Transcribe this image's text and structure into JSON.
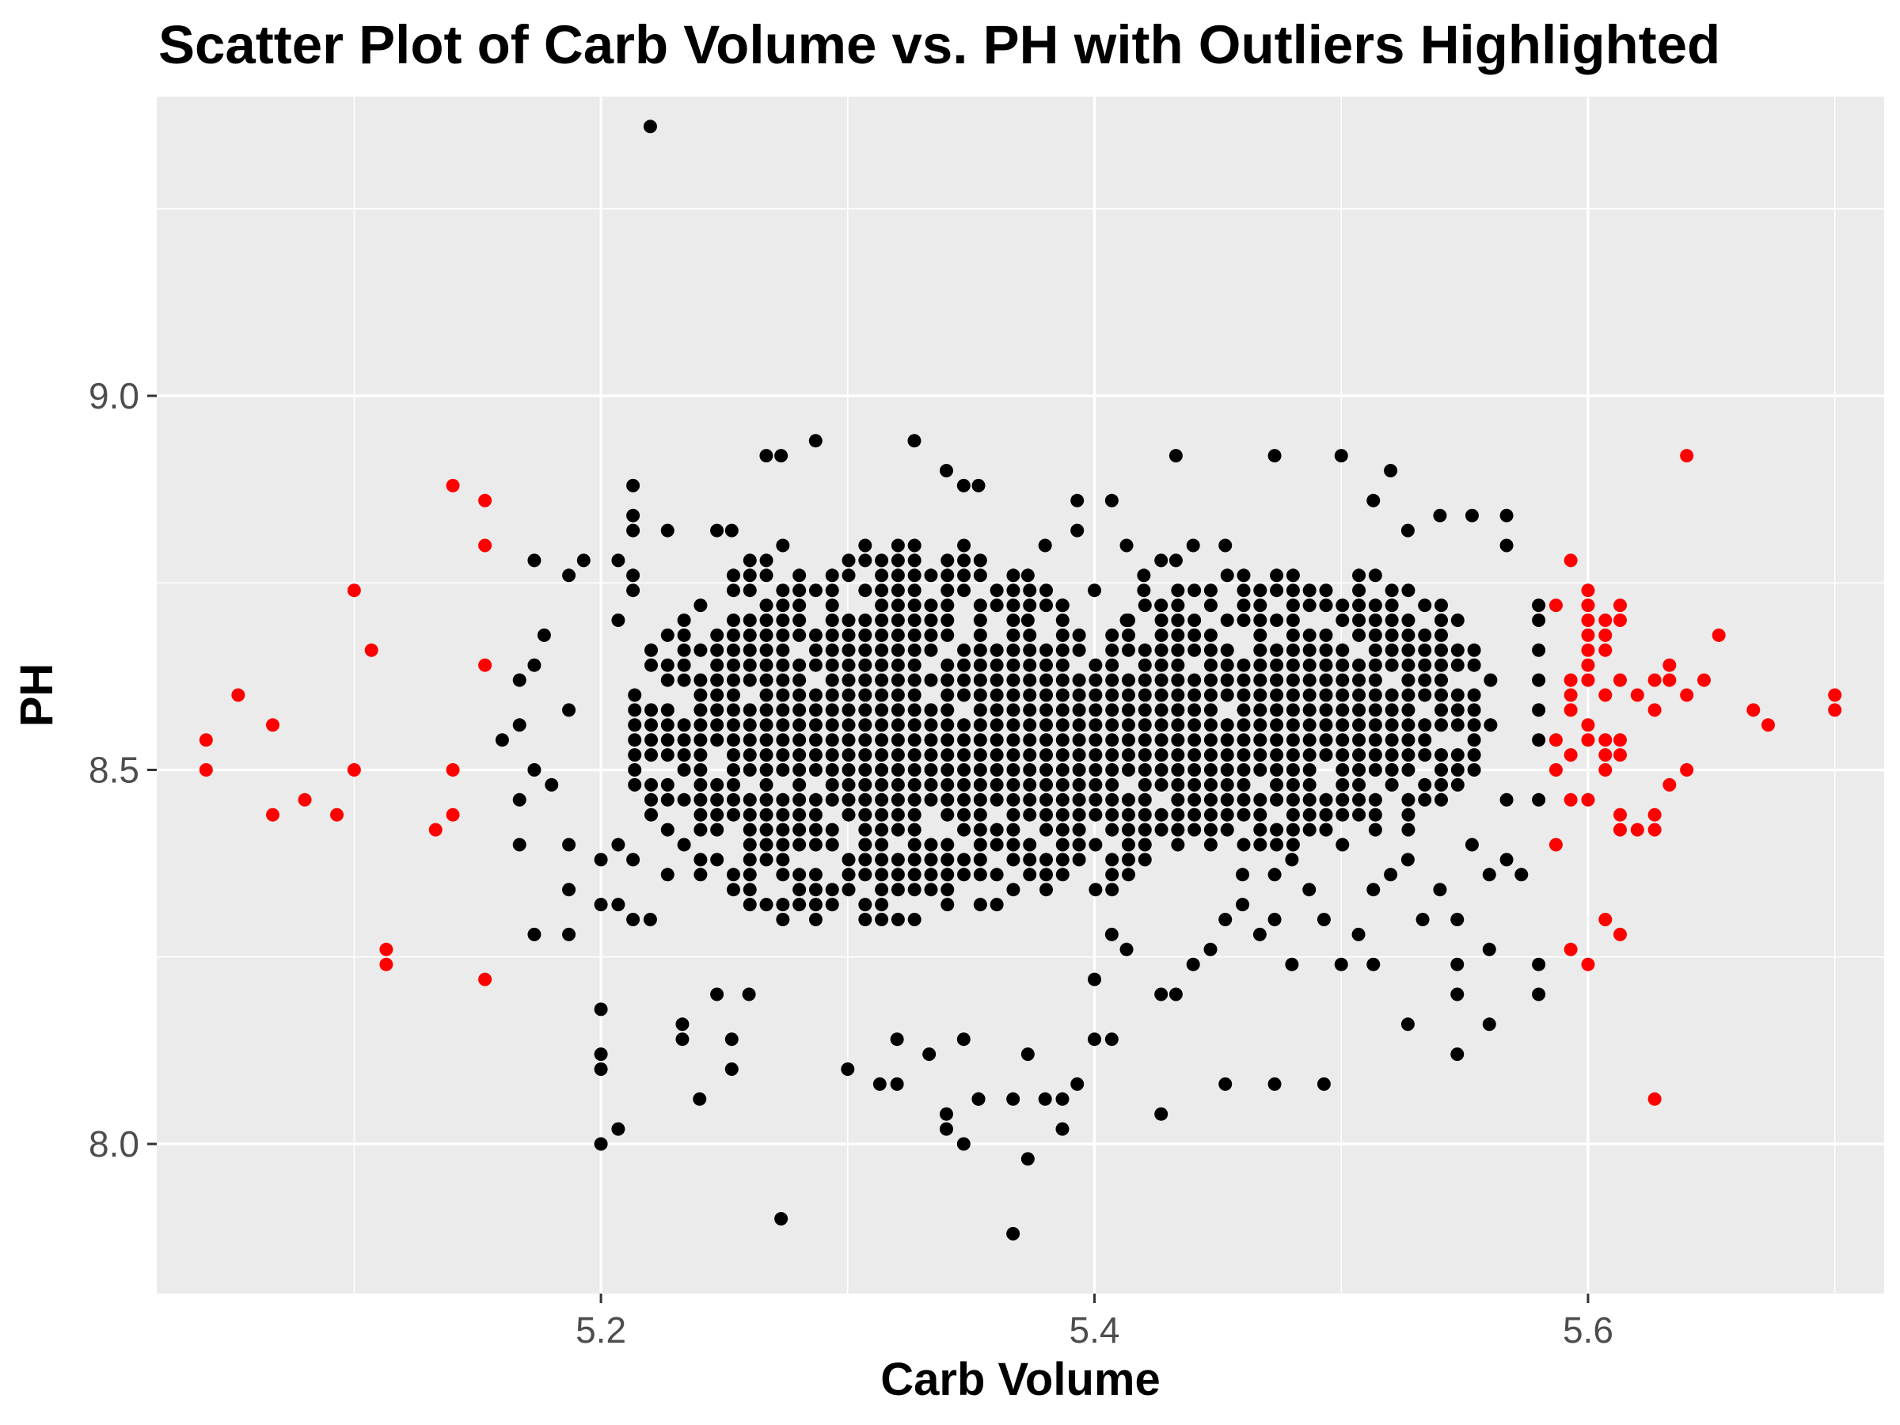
{
  "chart_data": {
    "type": "scatter",
    "title": "Scatter Plot of Carb Volume vs. PH with Outliers Highlighted",
    "xlabel": "Carb Volume",
    "ylabel": "PH",
    "xlim": [
      5.02,
      5.72
    ],
    "ylim": [
      7.8,
      9.4
    ],
    "x_ticks": [
      5.2,
      5.4,
      5.6
    ],
    "x_tick_labels": [
      "5.2",
      "5.4",
      "5.6"
    ],
    "y_ticks": [
      8.0,
      8.5,
      9.0
    ],
    "y_tick_labels": [
      "8.0",
      "8.5",
      "9.0"
    ],
    "grid": true,
    "legend": "none",
    "colors": {
      "panel": "#ebebeb",
      "grid": "#ffffff",
      "normal": "#000000",
      "outlier": "#ff0000"
    },
    "series": [
      {
        "color": "#000000",
        "points": [
          [
            5.22,
            9.36
          ],
          [
            5.367,
            7.88
          ],
          [
            5.273,
            7.9
          ],
          [
            5.373,
            7.98
          ],
          [
            5.2,
            8.0
          ],
          [
            5.207,
            8.02
          ],
          [
            5.347,
            8.0
          ],
          [
            5.34,
            8.02
          ],
          [
            5.387,
            8.02
          ],
          [
            5.427,
            8.04
          ],
          [
            5.24,
            8.06
          ],
          [
            5.353,
            8.06
          ],
          [
            5.367,
            8.06
          ],
          [
            5.38,
            8.06
          ],
          [
            5.387,
            8.06
          ],
          [
            5.2,
            8.1
          ],
          [
            5.253,
            8.1
          ],
          [
            5.3,
            8.1
          ],
          [
            5.313,
            8.08
          ],
          [
            5.32,
            8.08
          ],
          [
            5.393,
            8.08
          ],
          [
            5.453,
            8.08
          ],
          [
            5.473,
            8.08
          ],
          [
            5.493,
            8.08
          ],
          [
            5.2,
            8.12
          ],
          [
            5.547,
            8.12
          ],
          [
            5.2,
            8.18
          ],
          [
            5.233,
            8.16
          ],
          [
            5.527,
            8.16
          ],
          [
            5.56,
            8.16
          ],
          [
            5.233,
            8.14
          ],
          [
            5.253,
            8.14
          ],
          [
            5.347,
            8.14
          ],
          [
            5.4,
            8.14
          ],
          [
            5.407,
            8.14
          ],
          [
            5.26,
            8.2
          ],
          [
            5.247,
            8.2
          ],
          [
            5.5,
            8.24
          ],
          [
            5.513,
            8.24
          ],
          [
            5.547,
            8.24
          ],
          [
            5.58,
            8.2
          ],
          [
            5.547,
            8.2
          ],
          [
            5.58,
            8.24
          ],
          [
            5.56,
            8.26
          ],
          [
            5.173,
            8.28
          ],
          [
            5.187,
            8.28
          ],
          [
            5.187,
            8.34
          ],
          [
            5.2,
            8.32
          ],
          [
            5.207,
            8.32
          ],
          [
            5.22,
            8.3
          ],
          [
            5.213,
            8.3
          ],
          [
            5.227,
            8.36
          ],
          [
            5.167,
            8.4
          ],
          [
            5.187,
            8.4
          ],
          [
            5.2,
            8.38
          ],
          [
            5.207,
            8.4
          ],
          [
            5.213,
            8.38
          ],
          [
            5.553,
            8.4
          ],
          [
            5.567,
            8.38
          ],
          [
            5.573,
            8.36
          ],
          [
            5.56,
            8.36
          ],
          [
            5.58,
            8.46
          ],
          [
            5.567,
            8.46
          ],
          [
            5.58,
            8.54
          ],
          [
            5.58,
            8.58
          ],
          [
            5.58,
            8.62
          ],
          [
            5.58,
            8.66
          ],
          [
            5.58,
            8.7
          ],
          [
            5.58,
            8.72
          ],
          [
            5.553,
            8.84
          ],
          [
            5.567,
            8.84
          ],
          [
            5.567,
            8.8
          ],
          [
            5.54,
            8.84
          ],
          [
            5.527,
            8.82
          ],
          [
            5.513,
            8.86
          ],
          [
            5.52,
            8.9
          ],
          [
            5.5,
            8.92
          ],
          [
            5.473,
            8.92
          ],
          [
            5.433,
            8.92
          ],
          [
            5.273,
            8.92
          ],
          [
            5.267,
            8.92
          ],
          [
            5.287,
            8.94
          ],
          [
            5.327,
            8.94
          ],
          [
            5.34,
            8.9
          ],
          [
            5.347,
            8.88
          ],
          [
            5.353,
            8.88
          ],
          [
            5.407,
            8.86
          ],
          [
            5.393,
            8.86
          ],
          [
            5.213,
            8.88
          ],
          [
            5.213,
            8.84
          ],
          [
            5.213,
            8.82
          ],
          [
            5.227,
            8.82
          ],
          [
            5.253,
            8.82
          ],
          [
            5.247,
            8.82
          ],
          [
            5.173,
            8.78
          ],
          [
            5.193,
            8.78
          ],
          [
            5.187,
            8.76
          ],
          [
            5.207,
            8.78
          ],
          [
            5.213,
            8.76
          ],
          [
            5.213,
            8.74
          ],
          [
            5.177,
            8.68
          ],
          [
            5.167,
            8.62
          ],
          [
            5.16,
            8.54
          ],
          [
            5.167,
            8.56
          ],
          [
            5.173,
            8.64
          ],
          [
            5.187,
            8.58
          ],
          [
            5.167,
            8.46
          ],
          [
            5.173,
            8.5
          ],
          [
            5.18,
            8.48
          ],
          [
            5.207,
            8.7
          ],
          [
            5.413,
            8.8
          ],
          [
            5.42,
            8.76
          ],
          [
            5.427,
            8.78
          ],
          [
            5.433,
            8.78
          ],
          [
            5.44,
            8.8
          ],
          [
            5.453,
            8.8
          ],
          [
            5.42,
            8.74
          ],
          [
            5.427,
            8.72
          ],
          [
            5.413,
            8.7
          ],
          [
            5.4,
            8.74
          ],
          [
            5.393,
            8.82
          ],
          [
            5.38,
            8.8
          ],
          [
            5.373,
            8.76
          ],
          [
            5.387,
            8.72
          ],
          [
            5.373,
            8.7
          ],
          [
            5.407,
            8.28
          ],
          [
            5.413,
            8.26
          ],
          [
            5.4,
            8.22
          ],
          [
            5.427,
            8.2
          ],
          [
            5.433,
            8.2
          ],
          [
            5.44,
            8.24
          ],
          [
            5.453,
            8.3
          ],
          [
            5.46,
            8.32
          ],
          [
            5.473,
            8.3
          ],
          [
            5.467,
            8.28
          ],
          [
            5.447,
            8.26
          ],
          [
            5.48,
            8.24
          ],
          [
            5.493,
            8.3
          ],
          [
            5.487,
            8.34
          ],
          [
            5.48,
            8.38
          ],
          [
            5.473,
            8.36
          ],
          [
            5.46,
            8.36
          ],
          [
            5.507,
            8.28
          ],
          [
            5.513,
            8.34
          ],
          [
            5.52,
            8.36
          ],
          [
            5.527,
            8.38
          ],
          [
            5.54,
            8.34
          ],
          [
            5.547,
            8.3
          ],
          [
            5.533,
            8.3
          ],
          [
            5.353,
            8.06
          ],
          [
            5.333,
            8.12
          ],
          [
            5.32,
            8.14
          ],
          [
            5.34,
            8.04
          ],
          [
            5.373,
            8.12
          ]
        ]
      },
      {
        "color": "#ff0000",
        "points": [
          [
            5.04,
            8.54
          ],
          [
            5.04,
            8.5
          ],
          [
            5.053,
            8.6
          ],
          [
            5.067,
            8.56
          ],
          [
            5.067,
            8.44
          ],
          [
            5.08,
            8.46
          ],
          [
            5.093,
            8.44
          ],
          [
            5.1,
            8.74
          ],
          [
            5.1,
            8.5
          ],
          [
            5.107,
            8.66
          ],
          [
            5.113,
            8.26
          ],
          [
            5.113,
            8.24
          ],
          [
            5.133,
            8.42
          ],
          [
            5.14,
            8.88
          ],
          [
            5.14,
            8.5
          ],
          [
            5.14,
            8.44
          ],
          [
            5.153,
            8.86
          ],
          [
            5.153,
            8.8
          ],
          [
            5.153,
            8.64
          ],
          [
            5.153,
            8.22
          ],
          [
            5.587,
            8.72
          ],
          [
            5.587,
            8.54
          ],
          [
            5.587,
            8.5
          ],
          [
            5.587,
            8.4
          ],
          [
            5.593,
            8.62
          ],
          [
            5.593,
            8.6
          ],
          [
            5.593,
            8.58
          ],
          [
            5.593,
            8.52
          ],
          [
            5.593,
            8.46
          ],
          [
            5.593,
            8.26
          ],
          [
            5.593,
            8.78
          ],
          [
            5.6,
            8.74
          ],
          [
            5.6,
            8.72
          ],
          [
            5.6,
            8.7
          ],
          [
            5.6,
            8.68
          ],
          [
            5.6,
            8.66
          ],
          [
            5.6,
            8.64
          ],
          [
            5.6,
            8.62
          ],
          [
            5.6,
            8.56
          ],
          [
            5.6,
            8.54
          ],
          [
            5.6,
            8.46
          ],
          [
            5.6,
            8.24
          ],
          [
            5.607,
            8.7
          ],
          [
            5.607,
            8.68
          ],
          [
            5.607,
            8.66
          ],
          [
            5.607,
            8.6
          ],
          [
            5.607,
            8.54
          ],
          [
            5.607,
            8.52
          ],
          [
            5.607,
            8.5
          ],
          [
            5.607,
            8.3
          ],
          [
            5.613,
            8.72
          ],
          [
            5.613,
            8.7
          ],
          [
            5.613,
            8.62
          ],
          [
            5.613,
            8.54
          ],
          [
            5.613,
            8.52
          ],
          [
            5.613,
            8.44
          ],
          [
            5.613,
            8.42
          ],
          [
            5.613,
            8.28
          ],
          [
            5.62,
            8.6
          ],
          [
            5.62,
            8.42
          ],
          [
            5.627,
            8.62
          ],
          [
            5.627,
            8.58
          ],
          [
            5.627,
            8.44
          ],
          [
            5.627,
            8.42
          ],
          [
            5.627,
            8.06
          ],
          [
            5.633,
            8.64
          ],
          [
            5.633,
            8.62
          ],
          [
            5.633,
            8.48
          ],
          [
            5.64,
            8.92
          ],
          [
            5.64,
            8.6
          ],
          [
            5.64,
            8.5
          ],
          [
            5.647,
            8.62
          ],
          [
            5.653,
            8.68
          ],
          [
            5.667,
            8.58
          ],
          [
            5.673,
            8.56
          ],
          [
            5.7,
            8.6
          ],
          [
            5.7,
            8.58
          ]
        ]
      }
    ]
  }
}
